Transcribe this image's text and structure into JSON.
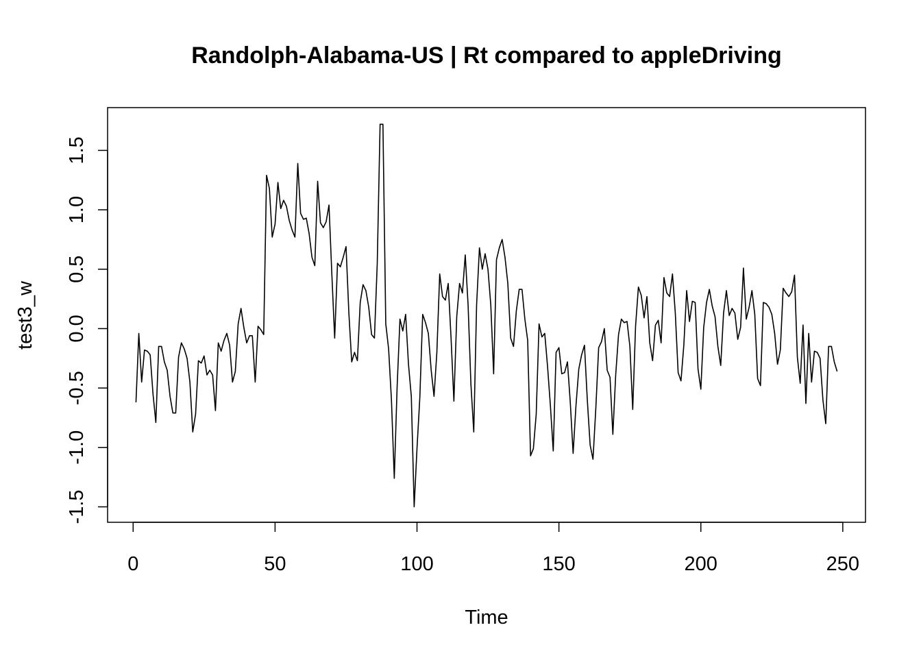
{
  "chart_data": {
    "type": "line",
    "title": "Randolph-Alabama-US | Rt compared to appleDriving",
    "xlabel": "Time",
    "ylabel": "test3_w",
    "xlim": [
      -9,
      258
    ],
    "ylim": [
      -1.63,
      1.86
    ],
    "x_ticks": [
      0,
      50,
      100,
      150,
      200,
      250
    ],
    "x_tick_labels": [
      "0",
      "50",
      "100",
      "150",
      "200",
      "250"
    ],
    "y_ticks": [
      -1.5,
      -1.0,
      -0.5,
      0.0,
      0.5,
      1.0,
      1.5
    ],
    "y_tick_labels": [
      "-1.5",
      "-1.0",
      "-0.5",
      "0.0",
      "0.5",
      "1.0",
      "1.5"
    ],
    "grid": false,
    "legend": "none",
    "line_color": "#000000",
    "series": [
      {
        "x_start": 1,
        "values": [
          -0.62,
          -0.04,
          -0.45,
          -0.18,
          -0.19,
          -0.22,
          -0.55,
          -0.79,
          -0.15,
          -0.15,
          -0.28,
          -0.35,
          -0.57,
          -0.71,
          -0.71,
          -0.24,
          -0.12,
          -0.17,
          -0.25,
          -0.45,
          -0.87,
          -0.72,
          -0.27,
          -0.29,
          -0.23,
          -0.39,
          -0.35,
          -0.39,
          -0.69,
          -0.12,
          -0.19,
          -0.1,
          -0.04,
          -0.14,
          -0.45,
          -0.36,
          0.04,
          0.17,
          0.01,
          -0.12,
          -0.06,
          -0.06,
          -0.45,
          0.02,
          -0.01,
          -0.05,
          1.29,
          1.18,
          0.77,
          0.88,
          1.23,
          1.01,
          1.08,
          1.03,
          0.91,
          0.83,
          0.77,
          1.39,
          0.97,
          0.92,
          0.93,
          0.8,
          0.6,
          0.53,
          1.24,
          0.89,
          0.85,
          0.9,
          1.04,
          0.46,
          -0.08,
          0.55,
          0.52,
          0.6,
          0.69,
          0.13,
          -0.28,
          -0.2,
          -0.27,
          0.22,
          0.37,
          0.32,
          0.18,
          -0.05,
          -0.08,
          0.55,
          1.72,
          1.72,
          0.04,
          -0.17,
          -0.6,
          -1.26,
          -0.49,
          0.08,
          -0.02,
          0.12,
          -0.3,
          -0.57,
          -1.5,
          -1.01,
          -0.58,
          0.12,
          0.05,
          -0.04,
          -0.35,
          -0.57,
          -0.2,
          0.46,
          0.27,
          0.24,
          0.38,
          -0.08,
          -0.61,
          0.1,
          0.38,
          0.3,
          0.62,
          0.2,
          -0.47,
          -0.87,
          0.2,
          0.68,
          0.5,
          0.63,
          0.5,
          0.2,
          -0.38,
          0.58,
          0.68,
          0.75,
          0.6,
          0.38,
          -0.08,
          -0.15,
          0.15,
          0.33,
          0.33,
          0.08,
          -0.1,
          -1.07,
          -1.01,
          -0.72,
          0.04,
          -0.07,
          -0.04,
          -0.32,
          -0.65,
          -1.03,
          -0.2,
          -0.16,
          -0.38,
          -0.37,
          -0.28,
          -0.62,
          -1.05,
          -0.65,
          -0.34,
          -0.22,
          -0.14,
          -0.6,
          -0.98,
          -1.1,
          -0.67,
          -0.16,
          -0.11,
          0.0,
          -0.35,
          -0.41,
          -0.89,
          -0.39,
          -0.05,
          0.08,
          0.05,
          0.06,
          -0.15,
          -0.68,
          0.02,
          0.35,
          0.28,
          0.09,
          0.27,
          -0.12,
          -0.27,
          0.03,
          0.07,
          -0.12,
          0.43,
          0.3,
          0.27,
          0.46,
          0.13,
          -0.37,
          -0.44,
          -0.14,
          0.32,
          0.06,
          0.23,
          0.22,
          -0.34,
          -0.51,
          0.01,
          0.22,
          0.33,
          0.19,
          0.1,
          -0.15,
          -0.31,
          0.13,
          0.32,
          0.11,
          0.17,
          0.13,
          -0.09,
          0.01,
          0.51,
          0.08,
          0.18,
          0.32,
          0.12,
          -0.42,
          -0.48,
          0.22,
          0.21,
          0.18,
          0.12,
          -0.04,
          -0.3,
          -0.18,
          0.34,
          0.3,
          0.27,
          0.31,
          0.45,
          -0.24,
          -0.46,
          0.03,
          -0.63,
          -0.04,
          -0.45,
          -0.19,
          -0.2,
          -0.25,
          -0.6,
          -0.8,
          -0.15,
          -0.15,
          -0.28,
          -0.36
        ]
      }
    ]
  }
}
